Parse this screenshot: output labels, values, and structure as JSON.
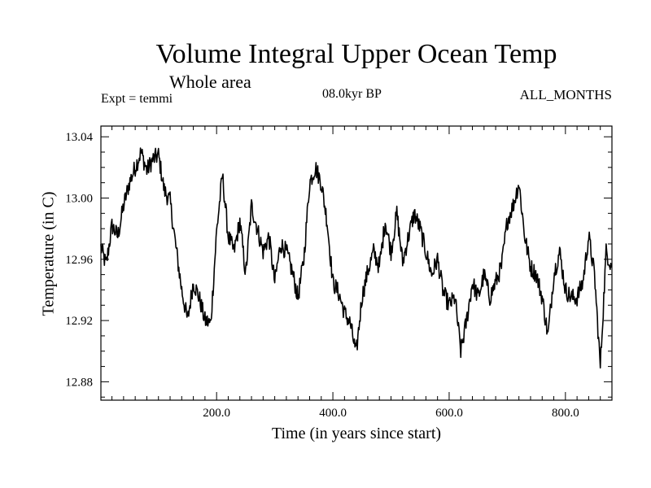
{
  "chart_data": {
    "type": "line",
    "title": "Volume Integral Upper Ocean Temp",
    "subtitle": "Whole area",
    "experiment_label": "Expt = temmi",
    "period_label": "08.0kyr BP",
    "months_label": "ALL_MONTHS",
    "xlabel": "Time (in years since start)",
    "ylabel": "Temperature (in C)",
    "xlim": [
      1,
      880
    ],
    "ylim": [
      12.868,
      13.047
    ],
    "x_ticks": [
      200,
      400,
      600,
      800
    ],
    "x_tick_labels": [
      "200.0",
      "400.0",
      "600.0",
      "800.0"
    ],
    "y_ticks": [
      12.88,
      12.92,
      12.96,
      13.0,
      13.04
    ],
    "y_tick_labels": [
      "12.88",
      "12.92",
      "12.96",
      "13.00",
      "13.04"
    ],
    "grid": false,
    "series": [
      {
        "name": "temmi",
        "x": [
          1,
          10,
          20,
          30,
          40,
          50,
          60,
          70,
          80,
          90,
          100,
          110,
          120,
          130,
          140,
          150,
          160,
          170,
          180,
          190,
          200,
          210,
          220,
          230,
          240,
          250,
          260,
          270,
          280,
          290,
          300,
          310,
          320,
          330,
          340,
          350,
          360,
          370,
          380,
          390,
          400,
          410,
          420,
          430,
          440,
          450,
          460,
          470,
          480,
          490,
          500,
          510,
          520,
          530,
          540,
          550,
          560,
          570,
          580,
          590,
          600,
          610,
          620,
          630,
          640,
          650,
          660,
          670,
          680,
          690,
          700,
          710,
          720,
          730,
          740,
          750,
          760,
          770,
          780,
          790,
          800,
          810,
          820,
          830,
          840,
          850,
          860,
          870,
          880
        ],
        "values": [
          12.968,
          12.956,
          12.982,
          12.975,
          12.995,
          13.01,
          13.02,
          13.03,
          13.018,
          13.025,
          13.028,
          13.005,
          12.998,
          12.968,
          12.94,
          12.92,
          12.945,
          12.935,
          12.92,
          12.918,
          12.978,
          13.015,
          12.975,
          12.965,
          12.985,
          12.95,
          12.995,
          12.98,
          12.965,
          12.975,
          12.945,
          12.97,
          12.965,
          12.952,
          12.935,
          12.96,
          13.01,
          13.02,
          13.01,
          12.985,
          12.945,
          12.938,
          12.925,
          12.918,
          12.898,
          12.935,
          12.952,
          12.965,
          12.955,
          12.985,
          12.965,
          12.99,
          12.958,
          12.975,
          12.99,
          12.98,
          12.965,
          12.95,
          12.96,
          12.938,
          12.93,
          12.935,
          12.9,
          12.92,
          12.945,
          12.935,
          12.95,
          12.935,
          12.945,
          12.955,
          12.985,
          12.995,
          13.01,
          12.975,
          12.955,
          12.95,
          12.935,
          12.91,
          12.95,
          12.965,
          12.94,
          12.935,
          12.935,
          12.945,
          12.975,
          12.95,
          12.89,
          12.965,
          12.955
        ]
      }
    ]
  }
}
